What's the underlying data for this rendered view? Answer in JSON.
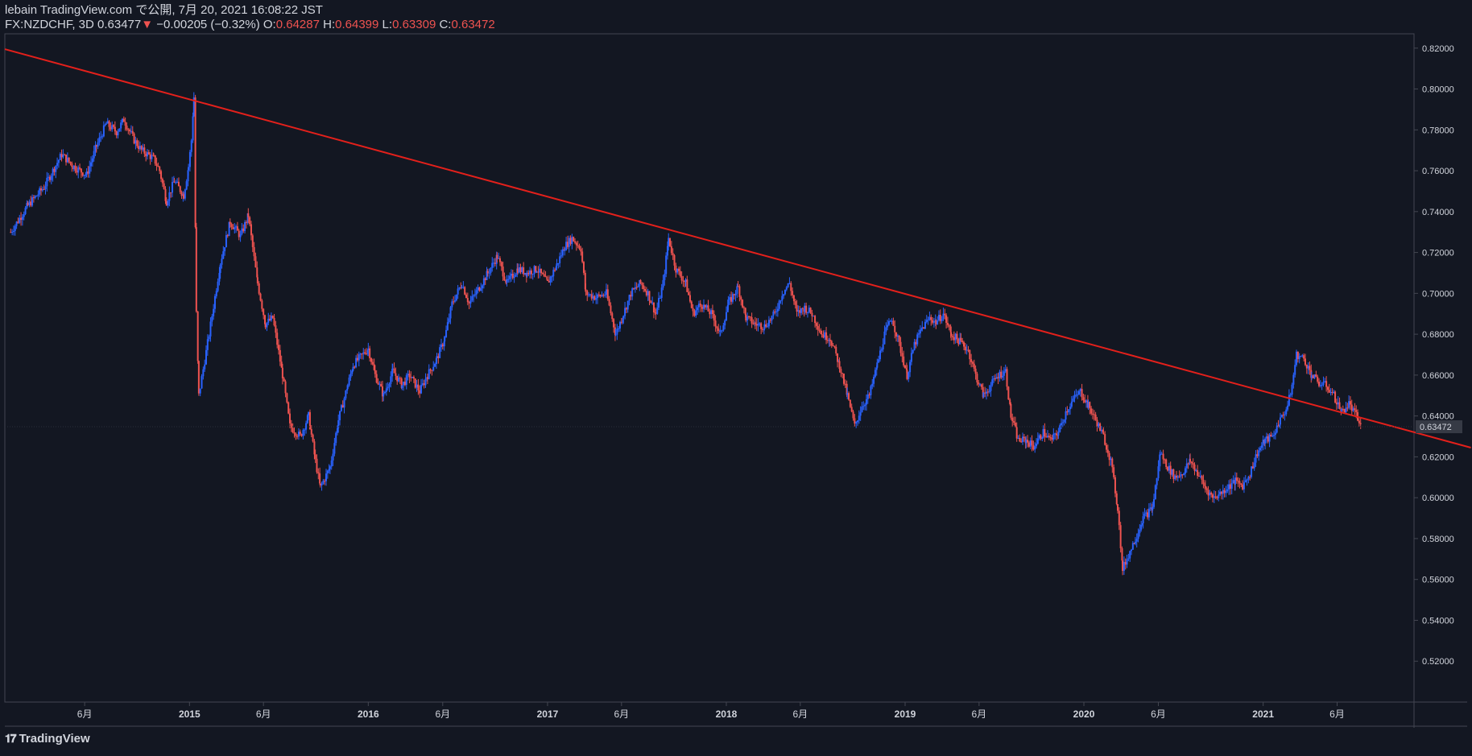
{
  "header": {
    "publish_line": "lebain TradingView.com で公開, 7月 20, 2021 16:08:22 JST",
    "symbol": "FX:NZDCHF, 3D",
    "last": "0.63477",
    "change_arrow": "▼",
    "change": "−0.00205 (−0.32%)",
    "o_label": "O:",
    "o_value": "0.64287",
    "h_label": "H:",
    "h_value": "0.64399",
    "l_label": "L:",
    "l_value": "0.63309",
    "c_label": "C:",
    "c_value": "0.63472"
  },
  "footer": {
    "logo_icon": "tradingview-logo-icon",
    "logo_text": "TradingView"
  },
  "colors": {
    "background": "#131722",
    "up": "#2962ff",
    "down": "#ef5350",
    "trendline": "#e3201b",
    "axis_text": "#d1d4dc",
    "border": "#434651"
  },
  "chart_data": {
    "type": "candlestick",
    "ylim": [
      0.5,
      0.827
    ],
    "price_label": "0.63472",
    "y_ticks": [
      "0.82000",
      "0.80000",
      "0.78000",
      "0.76000",
      "0.74000",
      "0.72000",
      "0.70000",
      "0.68000",
      "0.66000",
      "0.64000",
      "0.62000",
      "0.60000",
      "0.58000",
      "0.56000",
      "0.54000",
      "0.52000"
    ],
    "x_ticks": [
      {
        "date": "2014-06-01",
        "label": "6月",
        "major": false
      },
      {
        "date": "2015-01-01",
        "label": "2015",
        "major": true
      },
      {
        "date": "2015-06-01",
        "label": "6月",
        "major": false
      },
      {
        "date": "2016-01-01",
        "label": "2016",
        "major": true
      },
      {
        "date": "2016-06-01",
        "label": "6月",
        "major": false
      },
      {
        "date": "2017-01-01",
        "label": "2017",
        "major": true
      },
      {
        "date": "2017-06-01",
        "label": "6月",
        "major": false
      },
      {
        "date": "2018-01-01",
        "label": "2018",
        "major": true
      },
      {
        "date": "2018-06-01",
        "label": "6月",
        "major": false
      },
      {
        "date": "2019-01-01",
        "label": "2019",
        "major": true
      },
      {
        "date": "2019-06-01",
        "label": "6月",
        "major": false
      },
      {
        "date": "2020-01-01",
        "label": "2020",
        "major": true
      },
      {
        "date": "2020-06-01",
        "label": "6月",
        "major": false
      },
      {
        "date": "2021-01-01",
        "label": "2021",
        "major": true
      },
      {
        "date": "2021-06-01",
        "label": "6月",
        "major": false
      }
    ],
    "trendline": [
      {
        "date": "2013-12-20",
        "price": 0.8195
      },
      {
        "date": "2022-03-01",
        "price": 0.6245
      }
    ],
    "series_close": [
      [
        "2014-01-01",
        0.73
      ],
      [
        "2014-02-05",
        0.743
      ],
      [
        "2014-03-10",
        0.752
      ],
      [
        "2014-04-15",
        0.768
      ],
      [
        "2014-05-10",
        0.762
      ],
      [
        "2014-06-05",
        0.758
      ],
      [
        "2014-06-25",
        0.772
      ],
      [
        "2014-07-15",
        0.783
      ],
      [
        "2014-08-05",
        0.779
      ],
      [
        "2014-08-20",
        0.785
      ],
      [
        "2014-09-10",
        0.775
      ],
      [
        "2014-09-25",
        0.77
      ],
      [
        "2014-10-20",
        0.766
      ],
      [
        "2014-11-01",
        0.76
      ],
      [
        "2014-11-15",
        0.745
      ],
      [
        "2014-12-01",
        0.755
      ],
      [
        "2014-12-20",
        0.748
      ],
      [
        "2014-12-30",
        0.762
      ],
      [
        "2015-01-05",
        0.775
      ],
      [
        "2015-01-10",
        0.796
      ],
      [
        "2015-01-15",
        0.69
      ],
      [
        "2015-01-20",
        0.65
      ],
      [
        "2015-02-10",
        0.68
      ],
      [
        "2015-03-05",
        0.715
      ],
      [
        "2015-03-25",
        0.735
      ],
      [
        "2015-04-15",
        0.728
      ],
      [
        "2015-05-01",
        0.738
      ],
      [
        "2015-05-20",
        0.705
      ],
      [
        "2015-06-05",
        0.685
      ],
      [
        "2015-06-20",
        0.688
      ],
      [
        "2015-07-10",
        0.66
      ],
      [
        "2015-07-25",
        0.635
      ],
      [
        "2015-08-15",
        0.63
      ],
      [
        "2015-09-01",
        0.64
      ],
      [
        "2015-09-15",
        0.618
      ],
      [
        "2015-09-25",
        0.605
      ],
      [
        "2015-10-15",
        0.615
      ],
      [
        "2015-11-01",
        0.638
      ],
      [
        "2015-11-20",
        0.655
      ],
      [
        "2015-12-01",
        0.665
      ],
      [
        "2016-01-01",
        0.673
      ],
      [
        "2016-01-15",
        0.66
      ],
      [
        "2016-02-01",
        0.65
      ],
      [
        "2016-02-20",
        0.662
      ],
      [
        "2016-03-10",
        0.655
      ],
      [
        "2016-03-25",
        0.66
      ],
      [
        "2016-04-15",
        0.652
      ],
      [
        "2016-05-01",
        0.66
      ],
      [
        "2016-05-20",
        0.668
      ],
      [
        "2016-06-05",
        0.678
      ],
      [
        "2016-06-20",
        0.695
      ],
      [
        "2016-07-10",
        0.705
      ],
      [
        "2016-07-25",
        0.695
      ],
      [
        "2016-08-15",
        0.703
      ],
      [
        "2016-09-01",
        0.71
      ],
      [
        "2016-09-20",
        0.718
      ],
      [
        "2016-10-10",
        0.705
      ],
      [
        "2016-11-01",
        0.712
      ],
      [
        "2016-11-20",
        0.71
      ],
      [
        "2016-12-10",
        0.712
      ],
      [
        "2017-01-01",
        0.705
      ],
      [
        "2017-01-20",
        0.714
      ],
      [
        "2017-02-05",
        0.723
      ],
      [
        "2017-02-20",
        0.727
      ],
      [
        "2017-03-10",
        0.722
      ],
      [
        "2017-03-20",
        0.7
      ],
      [
        "2017-04-10",
        0.698
      ],
      [
        "2017-05-01",
        0.7
      ],
      [
        "2017-05-20",
        0.68
      ],
      [
        "2017-06-05",
        0.69
      ],
      [
        "2017-06-20",
        0.7
      ],
      [
        "2017-07-10",
        0.705
      ],
      [
        "2017-07-25",
        0.7
      ],
      [
        "2017-08-10",
        0.69
      ],
      [
        "2017-08-25",
        0.705
      ],
      [
        "2017-09-05",
        0.727
      ],
      [
        "2017-09-20",
        0.712
      ],
      [
        "2017-10-10",
        0.705
      ],
      [
        "2017-10-25",
        0.69
      ],
      [
        "2017-11-10",
        0.695
      ],
      [
        "2017-12-01",
        0.69
      ],
      [
        "2017-12-20",
        0.68
      ],
      [
        "2018-01-05",
        0.695
      ],
      [
        "2018-01-25",
        0.703
      ],
      [
        "2018-02-10",
        0.688
      ],
      [
        "2018-03-01",
        0.685
      ],
      [
        "2018-03-20",
        0.684
      ],
      [
        "2018-04-10",
        0.69
      ],
      [
        "2018-04-25",
        0.7
      ],
      [
        "2018-05-10",
        0.705
      ],
      [
        "2018-05-25",
        0.69
      ],
      [
        "2018-06-10",
        0.693
      ],
      [
        "2018-06-25",
        0.69
      ],
      [
        "2018-07-15",
        0.68
      ],
      [
        "2018-08-01",
        0.678
      ],
      [
        "2018-08-20",
        0.665
      ],
      [
        "2018-09-05",
        0.65
      ],
      [
        "2018-09-20",
        0.635
      ],
      [
        "2018-10-05",
        0.645
      ],
      [
        "2018-10-20",
        0.65
      ],
      [
        "2018-11-05",
        0.665
      ],
      [
        "2018-11-20",
        0.68
      ],
      [
        "2018-12-05",
        0.688
      ],
      [
        "2018-12-20",
        0.675
      ],
      [
        "2019-01-05",
        0.66
      ],
      [
        "2019-01-20",
        0.675
      ],
      [
        "2019-02-05",
        0.683
      ],
      [
        "2019-02-20",
        0.688
      ],
      [
        "2019-03-05",
        0.686
      ],
      [
        "2019-03-20",
        0.69
      ],
      [
        "2019-04-05",
        0.68
      ],
      [
        "2019-04-25",
        0.676
      ],
      [
        "2019-05-10",
        0.672
      ],
      [
        "2019-05-25",
        0.66
      ],
      [
        "2019-06-10",
        0.65
      ],
      [
        "2019-06-25",
        0.655
      ],
      [
        "2019-07-10",
        0.66
      ],
      [
        "2019-07-25",
        0.662
      ],
      [
        "2019-08-05",
        0.64
      ],
      [
        "2019-08-20",
        0.628
      ],
      [
        "2019-09-05",
        0.628
      ],
      [
        "2019-09-20",
        0.625
      ],
      [
        "2019-10-10",
        0.632
      ],
      [
        "2019-10-25",
        0.628
      ],
      [
        "2019-11-10",
        0.632
      ],
      [
        "2019-11-25",
        0.642
      ],
      [
        "2019-12-10",
        0.648
      ],
      [
        "2019-12-25",
        0.652
      ],
      [
        "2020-01-10",
        0.645
      ],
      [
        "2020-01-25",
        0.638
      ],
      [
        "2020-02-10",
        0.63
      ],
      [
        "2020-02-25",
        0.618
      ],
      [
        "2020-03-10",
        0.595
      ],
      [
        "2020-03-20",
        0.565
      ],
      [
        "2020-04-01",
        0.572
      ],
      [
        "2020-04-15",
        0.58
      ],
      [
        "2020-05-01",
        0.59
      ],
      [
        "2020-05-20",
        0.595
      ],
      [
        "2020-06-05",
        0.622
      ],
      [
        "2020-06-20",
        0.615
      ],
      [
        "2020-07-05",
        0.61
      ],
      [
        "2020-07-20",
        0.612
      ],
      [
        "2020-08-05",
        0.618
      ],
      [
        "2020-08-20",
        0.612
      ],
      [
        "2020-09-05",
        0.605
      ],
      [
        "2020-09-20",
        0.6
      ],
      [
        "2020-10-05",
        0.602
      ],
      [
        "2020-10-20",
        0.605
      ],
      [
        "2020-11-05",
        0.608
      ],
      [
        "2020-11-20",
        0.606
      ],
      [
        "2020-12-05",
        0.612
      ],
      [
        "2020-12-20",
        0.622
      ],
      [
        "2021-01-05",
        0.628
      ],
      [
        "2021-01-20",
        0.63
      ],
      [
        "2021-02-05",
        0.638
      ],
      [
        "2021-02-20",
        0.645
      ],
      [
        "2021-03-01",
        0.655
      ],
      [
        "2021-03-10",
        0.67
      ],
      [
        "2021-03-25",
        0.668
      ],
      [
        "2021-04-10",
        0.66
      ],
      [
        "2021-04-25",
        0.656
      ],
      [
        "2021-05-10",
        0.655
      ],
      [
        "2021-05-25",
        0.65
      ],
      [
        "2021-06-10",
        0.642
      ],
      [
        "2021-06-25",
        0.646
      ],
      [
        "2021-07-10",
        0.64
      ],
      [
        "2021-07-20",
        0.6347
      ]
    ]
  }
}
